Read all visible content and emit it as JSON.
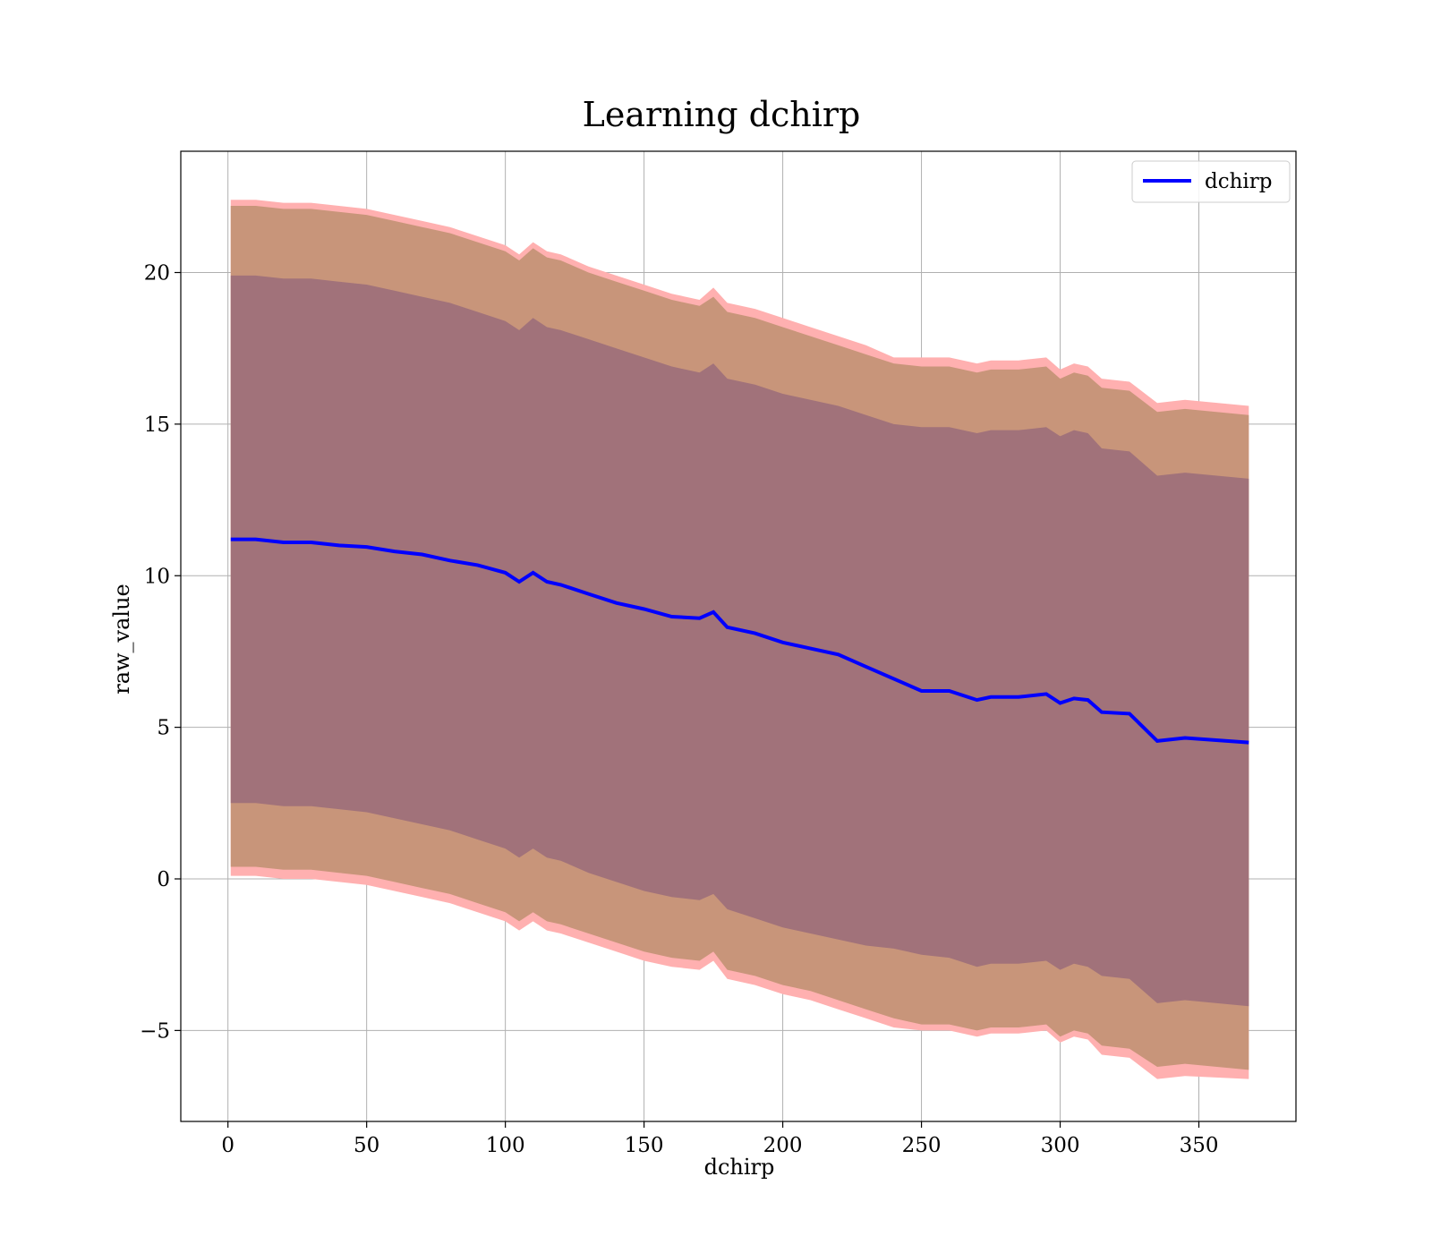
{
  "chart_data": {
    "type": "line",
    "title": "Learning dchirp",
    "xlabel": "dchirp",
    "ylabel": "raw_value",
    "xlim": [
      -17,
      385
    ],
    "ylim": [
      -8,
      24
    ],
    "x_ticks": [
      0,
      50,
      100,
      150,
      200,
      250,
      300,
      350
    ],
    "y_ticks": [
      -5,
      0,
      5,
      10,
      15,
      20
    ],
    "x_tick_labels": [
      "0",
      "50",
      "100",
      "150",
      "200",
      "250",
      "300",
      "350"
    ],
    "y_tick_labels": [
      "−5",
      "0",
      "5",
      "10",
      "15",
      "20"
    ],
    "grid": true,
    "legend": {
      "position": "top-right",
      "entries": [
        "dchirp"
      ]
    },
    "series": [
      {
        "name": "dchirp",
        "color": "#0000ff",
        "x": [
          1,
          10,
          20,
          30,
          40,
          50,
          60,
          70,
          80,
          90,
          100,
          105,
          110,
          115,
          120,
          130,
          140,
          150,
          160,
          170,
          175,
          180,
          190,
          200,
          210,
          220,
          230,
          240,
          250,
          260,
          270,
          275,
          285,
          295,
          300,
          305,
          310,
          315,
          325,
          335,
          345,
          368
        ],
        "mean": [
          11.2,
          11.2,
          11.1,
          11.1,
          11.0,
          10.95,
          10.8,
          10.7,
          10.5,
          10.35,
          10.1,
          9.8,
          10.1,
          9.8,
          9.7,
          9.4,
          9.1,
          8.9,
          8.65,
          8.6,
          8.8,
          8.3,
          8.1,
          7.8,
          7.6,
          7.4,
          7.0,
          6.6,
          6.2,
          6.2,
          5.9,
          6.0,
          6.0,
          6.1,
          5.8,
          5.95,
          5.9,
          5.5,
          5.45,
          4.55,
          4.65,
          4.5
        ],
        "inner_upper": [
          19.9,
          19.9,
          19.8,
          19.8,
          19.7,
          19.6,
          19.4,
          19.2,
          19.0,
          18.7,
          18.4,
          18.1,
          18.5,
          18.2,
          18.1,
          17.8,
          17.5,
          17.2,
          16.9,
          16.7,
          17.0,
          16.5,
          16.3,
          16.0,
          15.8,
          15.6,
          15.3,
          15.0,
          14.9,
          14.9,
          14.7,
          14.8,
          14.8,
          14.9,
          14.6,
          14.8,
          14.7,
          14.2,
          14.1,
          13.3,
          13.4,
          13.2
        ],
        "inner_lower": [
          2.5,
          2.5,
          2.4,
          2.4,
          2.3,
          2.2,
          2.0,
          1.8,
          1.6,
          1.3,
          1.0,
          0.7,
          1.0,
          0.7,
          0.6,
          0.2,
          -0.1,
          -0.4,
          -0.6,
          -0.7,
          -0.5,
          -1.0,
          -1.3,
          -1.6,
          -1.8,
          -2.0,
          -2.2,
          -2.3,
          -2.5,
          -2.6,
          -2.9,
          -2.8,
          -2.8,
          -2.7,
          -3.0,
          -2.8,
          -2.9,
          -3.2,
          -3.3,
          -4.1,
          -4.0,
          -4.2
        ],
        "outer_upper": [
          22.2,
          22.2,
          22.1,
          22.1,
          22.0,
          21.9,
          21.7,
          21.5,
          21.3,
          21.0,
          20.7,
          20.4,
          20.8,
          20.5,
          20.4,
          20.0,
          19.7,
          19.4,
          19.1,
          18.9,
          19.2,
          18.7,
          18.5,
          18.2,
          17.9,
          17.6,
          17.3,
          17.0,
          16.9,
          16.9,
          16.7,
          16.8,
          16.8,
          16.9,
          16.5,
          16.7,
          16.6,
          16.2,
          16.1,
          15.4,
          15.5,
          15.3
        ],
        "outer_lower": [
          0.4,
          0.4,
          0.3,
          0.3,
          0.2,
          0.1,
          -0.1,
          -0.3,
          -0.5,
          -0.8,
          -1.1,
          -1.4,
          -1.1,
          -1.4,
          -1.5,
          -1.8,
          -2.1,
          -2.4,
          -2.6,
          -2.7,
          -2.4,
          -3.0,
          -3.2,
          -3.5,
          -3.7,
          -4.0,
          -4.3,
          -4.6,
          -4.8,
          -4.8,
          -5.0,
          -4.9,
          -4.9,
          -4.8,
          -5.2,
          -5.0,
          -5.1,
          -5.5,
          -5.6,
          -6.2,
          -6.1,
          -6.3
        ],
        "outer_band_upper_edge": [
          22.4,
          22.4,
          22.3,
          22.3,
          22.2,
          22.1,
          21.9,
          21.7,
          21.5,
          21.2,
          20.9,
          20.6,
          21.0,
          20.7,
          20.6,
          20.2,
          19.9,
          19.6,
          19.3,
          19.1,
          19.5,
          19.0,
          18.8,
          18.5,
          18.2,
          17.9,
          17.6,
          17.2,
          17.2,
          17.2,
          17.0,
          17.1,
          17.1,
          17.2,
          16.8,
          17.0,
          16.9,
          16.5,
          16.4,
          15.7,
          15.8,
          15.6
        ],
        "outer_band_lower_edge": [
          0.1,
          0.1,
          0.0,
          0.0,
          -0.1,
          -0.2,
          -0.4,
          -0.6,
          -0.8,
          -1.1,
          -1.4,
          -1.7,
          -1.4,
          -1.7,
          -1.8,
          -2.1,
          -2.4,
          -2.7,
          -2.9,
          -3.0,
          -2.7,
          -3.3,
          -3.5,
          -3.8,
          -4.0,
          -4.3,
          -4.6,
          -4.9,
          -5.0,
          -5.0,
          -5.2,
          -5.1,
          -5.1,
          -5.0,
          -5.4,
          -5.2,
          -5.3,
          -5.8,
          -5.9,
          -6.6,
          -6.5,
          -6.6
        ]
      }
    ],
    "colors": {
      "mean_line": "#0000ff",
      "inner_band": "#a1727a",
      "outer_band": "#c8957a",
      "outer_edge_band": "#ffb0b0",
      "grid": "#b0b0b0",
      "axes": "#000000"
    }
  }
}
